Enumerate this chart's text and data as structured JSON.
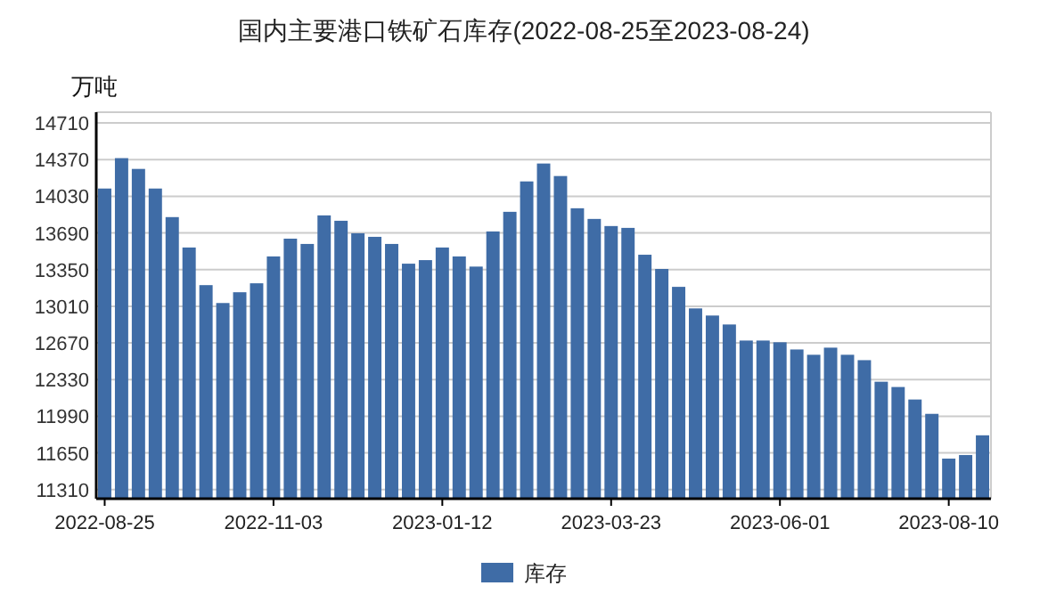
{
  "chart_data": {
    "type": "bar",
    "title": "国内主要港口铁矿石库存(2022-08-25至2023-08-24)",
    "ylabel": "万吨",
    "categories": [
      "2022-08-25",
      null,
      null,
      null,
      null,
      null,
      null,
      null,
      null,
      null,
      "2022-11-03",
      null,
      null,
      null,
      null,
      null,
      null,
      null,
      null,
      null,
      "2023-01-12",
      null,
      null,
      null,
      null,
      null,
      null,
      null,
      null,
      null,
      "2023-03-23",
      null,
      null,
      null,
      null,
      null,
      null,
      null,
      null,
      null,
      "2023-06-01",
      null,
      null,
      null,
      null,
      null,
      null,
      null,
      null,
      null,
      "2023-08-10",
      null,
      null
    ],
    "series": [
      {
        "name": "库存",
        "color": "#3f6ca6",
        "values": [
          14102,
          14384,
          14284,
          14102,
          13837,
          13555,
          13206,
          13040,
          13140,
          13223,
          13472,
          13637,
          13588,
          13853,
          13803,
          13687,
          13654,
          13588,
          13405,
          13438,
          13555,
          13472,
          13378,
          13704,
          13886,
          14168,
          14334,
          14218,
          13919,
          13820,
          13754,
          13737,
          13488,
          13356,
          13190,
          12990,
          12924,
          12841,
          12692,
          12692,
          12676,
          12609,
          12560,
          12626,
          12560,
          12510,
          12310,
          12261,
          12145,
          12012,
          11597,
          11630,
          11813
        ]
      }
    ],
    "ylim": [
      11225,
      14810
    ],
    "yticks": [
      11310,
      11650,
      11990,
      12330,
      12670,
      13010,
      13350,
      13690,
      14030,
      14370,
      14710
    ],
    "grid": "y",
    "legend": "bottom"
  }
}
